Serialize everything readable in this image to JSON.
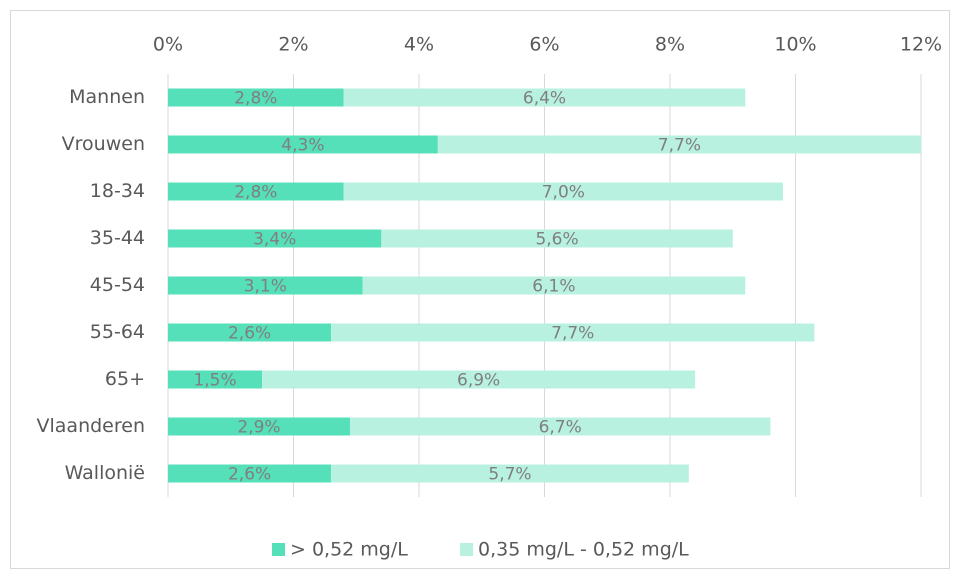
{
  "chart_data": {
    "type": "bar",
    "orientation": "horizontal",
    "stacked": true,
    "categories": [
      "Mannen",
      "Vrouwen",
      "18-34",
      "35-44",
      "45-54",
      "55-64",
      "65+",
      "Vlaanderen",
      "Wallonië"
    ],
    "series": [
      {
        "name": "> 0,52 mg/L",
        "color": "#56e0b9",
        "values": [
          2.8,
          4.3,
          2.8,
          3.4,
          3.1,
          2.6,
          1.5,
          2.9,
          2.6
        ],
        "value_labels": [
          "2,8%",
          "4,3%",
          "2,8%",
          "3,4%",
          "3,1%",
          "2,6%",
          "1,5%",
          "2,9%",
          "2,6%"
        ]
      },
      {
        "name": "0,35 mg/L - 0,52 mg/L",
        "color": "#b9f1e1",
        "values": [
          6.4,
          7.7,
          7.0,
          5.6,
          6.1,
          7.7,
          6.9,
          6.7,
          5.7
        ],
        "value_labels": [
          "6,4%",
          "7,7%",
          "7,0%",
          "5,6%",
          "6,1%",
          "7,7%",
          "6,9%",
          "6,7%",
          "5,7%"
        ]
      }
    ],
    "xlim": [
      0,
      12
    ],
    "xticks": [
      {
        "value": 0,
        "label": "0%"
      },
      {
        "value": 2,
        "label": "2%"
      },
      {
        "value": 4,
        "label": "4%"
      },
      {
        "value": 6,
        "label": "6%"
      },
      {
        "value": 8,
        "label": "8%"
      },
      {
        "value": 10,
        "label": "10%"
      },
      {
        "value": 12,
        "label": "12%"
      }
    ],
    "grid": true,
    "legend": "bottom"
  }
}
